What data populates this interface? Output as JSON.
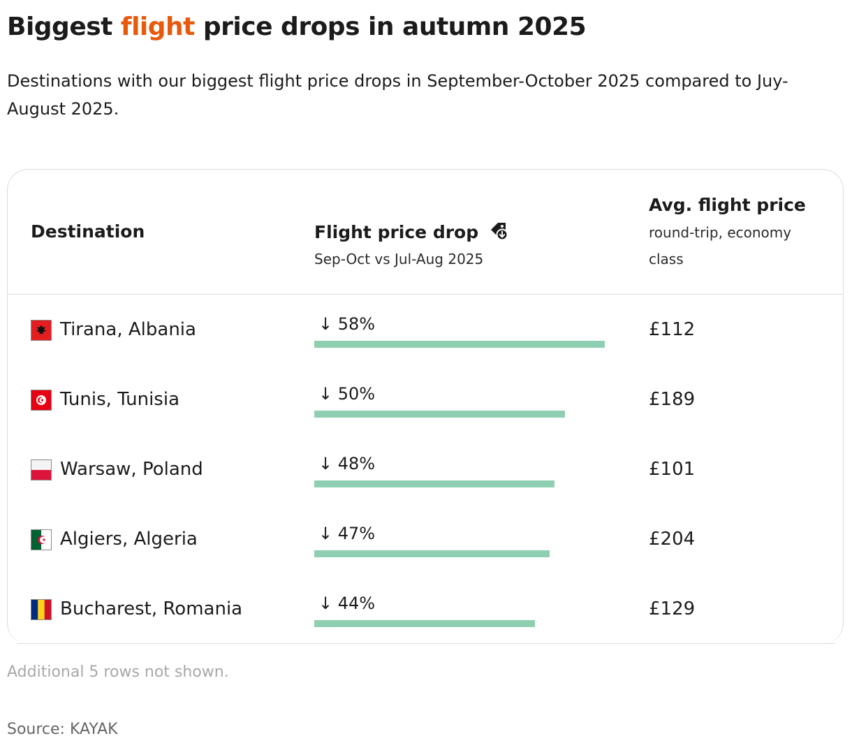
{
  "header": {
    "title_pre": "Biggest ",
    "title_accent": "flight",
    "title_post": " price drops in autumn 2025",
    "subtitle": "Destinations with our biggest flight price drops in September-October 2025 compared to Juy-August 2025."
  },
  "colors": {
    "accent": "#e8590c",
    "bar": "#8ecfb1"
  },
  "table": {
    "columns": {
      "destination": {
        "title": "Destination"
      },
      "drop": {
        "title": "Flight price drop",
        "subtitle": "Sep-Oct vs Jul-Aug 2025",
        "icon": "price-tag-down-icon"
      },
      "price": {
        "title": "Avg. flight price",
        "subtitle": "round-trip, economy class"
      }
    }
  },
  "chart_data": {
    "type": "bar",
    "categories": [
      "Tirana, Albania",
      "Tunis, Tunisia",
      "Warsaw, Poland",
      "Algiers, Algeria",
      "Bucharest, Romania"
    ],
    "values": [
      58,
      50,
      48,
      47,
      44
    ],
    "labels": [
      "↓ 58%",
      "↓ 50%",
      "↓ 48%",
      "↓ 47%",
      "↓ 44%"
    ],
    "prices": [
      "£112",
      "£189",
      "£101",
      "£204",
      "£129"
    ],
    "flags": [
      "albania-flag-icon",
      "tunisia-flag-icon",
      "poland-flag-icon",
      "algeria-flag-icon",
      "romania-flag-icon"
    ],
    "xlim": [
      0,
      58
    ]
  },
  "footer": {
    "note": "Additional 5 rows not shown.",
    "source": "Source: KAYAK"
  }
}
